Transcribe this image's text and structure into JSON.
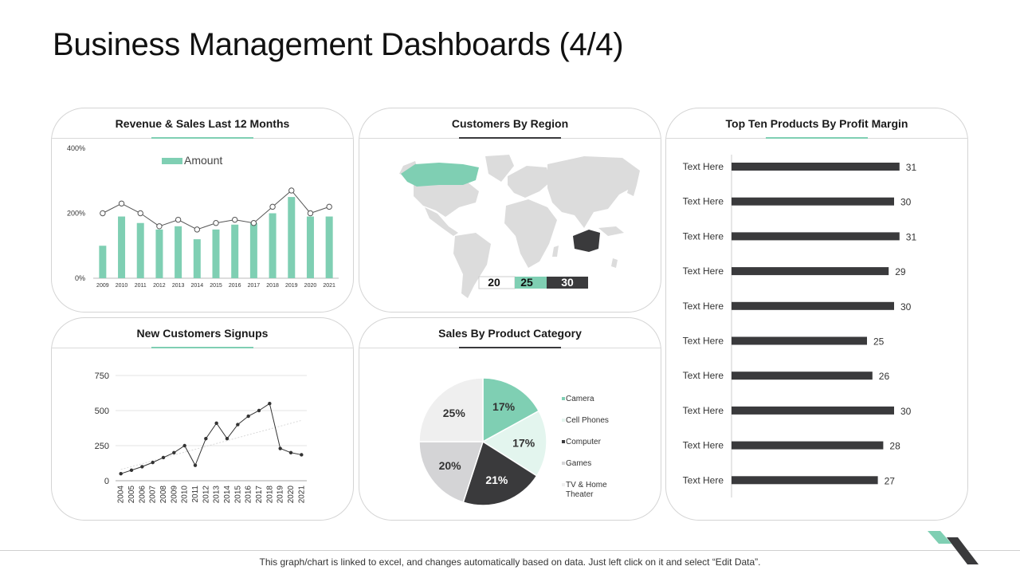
{
  "title": "Business Management Dashboards (4/4)",
  "footer": "This graph/chart is linked to excel, and changes automatically based on data. Just left click on it and select “Edit Data”.",
  "colors": {
    "accent": "#7fcfb3",
    "dark": "#3a3a3c",
    "light_gray": "#d4d4d6",
    "very_light": "#efefef",
    "mint_light": "#e3f5ee"
  },
  "charts": {
    "revenue": {
      "title": "Revenue & Sales Last 12 Months",
      "legend": "Amount",
      "chart_data": {
        "type": "bar",
        "categories": [
          "2009",
          "2010",
          "2011",
          "2012",
          "2013",
          "2014",
          "2015",
          "2016",
          "2017",
          "2018",
          "2019",
          "2020",
          "2021"
        ],
        "series": [
          {
            "name": "Amount",
            "type": "bar",
            "values": [
              100,
              190,
              170,
              150,
              160,
              120,
              150,
              165,
              170,
              200,
              250,
              190,
              190
            ]
          },
          {
            "type": "line",
            "values": [
              200,
              230,
              200,
              160,
              180,
              150,
              170,
              180,
              170,
              220,
              270,
              200,
              220
            ]
          }
        ],
        "y_ticks": [
          "400%",
          "200%",
          "0%"
        ],
        "ylim": [
          0,
          400
        ],
        "legend_position": "top-left"
      }
    },
    "region": {
      "title": "Customers By Region",
      "legend_values": [
        "20",
        "25",
        "30"
      ]
    },
    "products": {
      "title": "Top Ten Products By Profit Margin",
      "chart_data": {
        "type": "bar",
        "orientation": "horizontal",
        "categories": [
          "Text Here",
          "Text Here",
          "Text Here",
          "Text Here",
          "Text Here",
          "Text Here",
          "Text Here",
          "Text Here",
          "Text Here",
          "Text Here"
        ],
        "values": [
          31,
          30,
          31,
          29,
          30,
          25,
          26,
          30,
          28,
          27
        ],
        "xlim": [
          0,
          35
        ]
      }
    },
    "signups": {
      "title": "New Customers Signups",
      "chart_data": {
        "type": "line",
        "x": [
          "2004",
          "2005",
          "2006",
          "2007",
          "2008",
          "2009",
          "2010",
          "2011",
          "2012",
          "2013",
          "2014",
          "2015",
          "2016",
          "2017",
          "2018",
          "2019",
          "2020",
          "2021"
        ],
        "series": [
          {
            "values": [
              50,
              75,
              100,
              130,
              165,
              200,
              250,
              110,
              300,
              410,
              300,
              400,
              460,
              500,
              550,
              230,
              200,
              185
            ],
            "trend": [
              80,
              430
            ]
          }
        ],
        "y_ticks": [
          0,
          250,
          500,
          750
        ],
        "ylim": [
          0,
          750
        ],
        "grid": true
      }
    },
    "category": {
      "title": "Sales By Product Category",
      "chart_data": {
        "type": "pie",
        "labels": [
          "Camera",
          "Cell Phones",
          "Computer",
          "Games",
          "TV & Home Theater"
        ],
        "values": [
          17,
          17,
          21,
          20,
          25
        ],
        "value_labels": [
          "17%",
          "17%",
          "21%",
          "20%",
          "25%"
        ],
        "colors": [
          "#7fcfb3",
          "#e3f5ee",
          "#3a3a3c",
          "#d4d4d6",
          "#efefef"
        ],
        "legend_position": "right"
      }
    }
  }
}
